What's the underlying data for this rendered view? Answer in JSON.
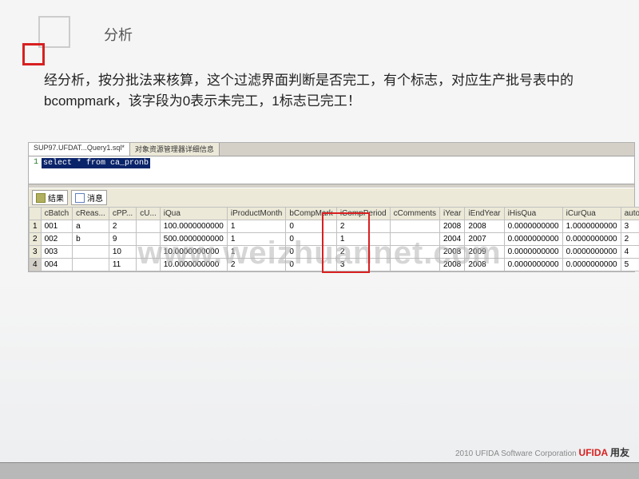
{
  "slide": {
    "title": "分析",
    "body": "经分析，按分批法来核算，这个过滤界面判断是否完工，有个标志，对应生产批号表中的bcompmark，该字段为0表示未完工，1标志已完工！"
  },
  "sql_editor": {
    "tabs": [
      "SUP97.UFDAT...Query1.sql*",
      "对象资源管理器详细信息"
    ],
    "line_no": "1",
    "query": "select * from ca_pronb"
  },
  "result_tabs": {
    "results": "结果",
    "messages": "消息"
  },
  "table": {
    "columns": [
      "",
      "cBatch",
      "cReas...",
      "cPP...",
      "cU...",
      "iQua",
      "iProductMonth",
      "bCompMark",
      "iCompPeriod",
      "cComments",
      "iYear",
      "iEndYear",
      "iHisQua",
      "iCurQua",
      "autoid"
    ],
    "rows": [
      [
        "1",
        "001",
        "a",
        "2",
        "",
        "100.0000000000",
        "1",
        "0",
        "2",
        "",
        "2008",
        "2008",
        "0.0000000000",
        "1.0000000000",
        "3"
      ],
      [
        "2",
        "002",
        "b",
        "9",
        "",
        "500.0000000000",
        "1",
        "0",
        "1",
        "",
        "2004",
        "2007",
        "0.0000000000",
        "0.0000000000",
        "2"
      ],
      [
        "3",
        "003",
        "",
        "10",
        "",
        "10.0000000000",
        "1",
        "0",
        "2",
        "",
        "2008",
        "2009",
        "0.0000000000",
        "0.0000000000",
        "4"
      ],
      [
        "4",
        "004",
        "",
        "11",
        "",
        "10.0000000000",
        "2",
        "0",
        "3",
        "",
        "2008",
        "2008",
        "0.0000000000",
        "0.0000000000",
        "5"
      ]
    ]
  },
  "watermark": "www.weizhuannet.com",
  "footer": {
    "copyright": "2010 UFIDA Software Corporation",
    "brand_en": "UFIDA",
    "brand_cn": "用友"
  },
  "colors": {
    "accent_red": "#d82020",
    "sql_highlight_bg": "#0a246a",
    "win_classic_bg": "#ece9d8"
  }
}
